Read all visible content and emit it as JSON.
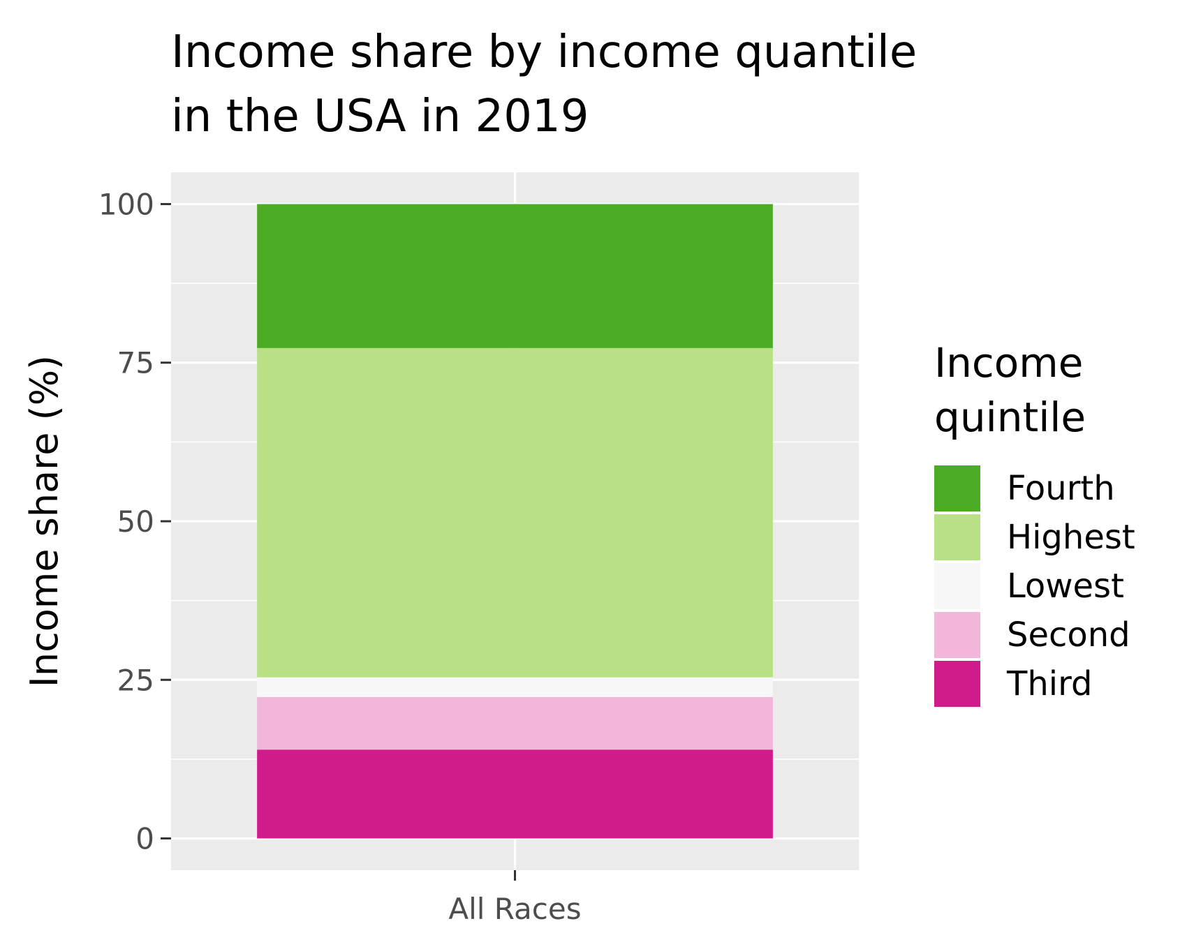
{
  "chart_data": {
    "type": "bar",
    "stacked": true,
    "title_lines": [
      "Income share by income quantile",
      "in the USA in 2019"
    ],
    "xlabel": "",
    "ylabel": "Income share (%)",
    "categories": [
      "All Races"
    ],
    "ylim": [
      -5,
      105
    ],
    "yticks": [
      0,
      25,
      50,
      75,
      100
    ],
    "grid": true,
    "legend": {
      "title_lines": [
        "Income",
        "quintile"
      ],
      "position": "right",
      "entries": [
        "Fourth",
        "Highest",
        "Lowest",
        "Second",
        "Third"
      ]
    },
    "stack_order_bottom_to_top": [
      "Third",
      "Second",
      "Lowest",
      "Highest",
      "Fourth"
    ],
    "series": [
      {
        "name": "Fourth",
        "values": [
          22.7
        ],
        "color": "#4dac26"
      },
      {
        "name": "Highest",
        "values": [
          51.9
        ],
        "color": "#b8e186"
      },
      {
        "name": "Lowest",
        "values": [
          3.1
        ],
        "color": "#f7f7f7"
      },
      {
        "name": "Second",
        "values": [
          8.3
        ],
        "color": "#f1b6da"
      },
      {
        "name": "Third",
        "values": [
          14.0
        ],
        "color": "#d01c8b"
      }
    ]
  }
}
